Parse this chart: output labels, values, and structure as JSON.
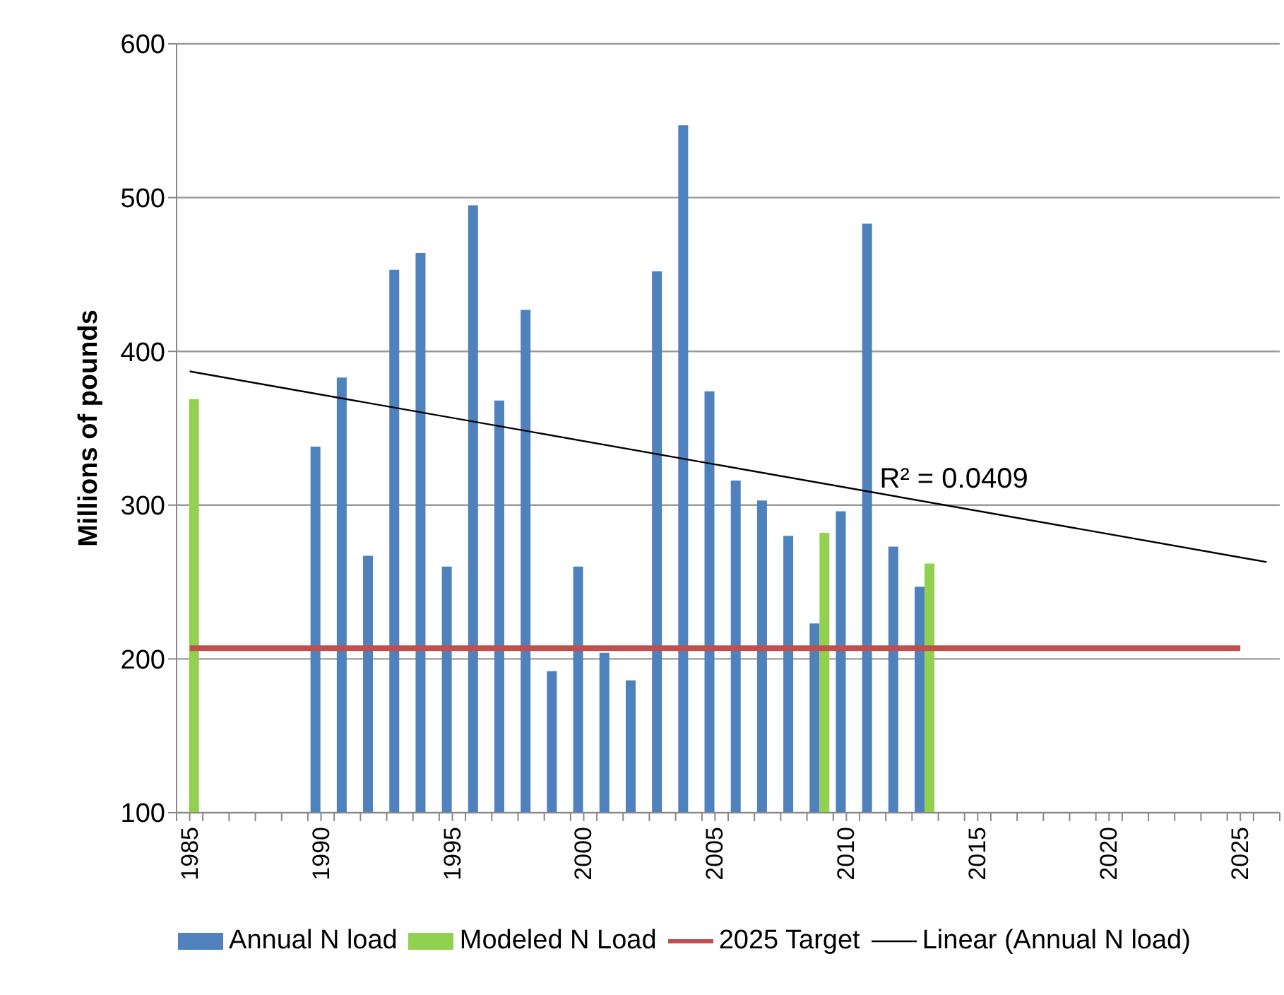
{
  "chart_data": {
    "type": "bar",
    "ylabel": "Millions of pounds",
    "xlim": [
      1984.5,
      2026.5
    ],
    "xticks": [
      1985,
      1990,
      1995,
      2000,
      2005,
      2010,
      2015,
      2020,
      2025,
      {
        "value": 1984.5,
        "label": null
      },
      {
        "value": 1985.5,
        "label": null
      },
      {
        "value": 1986.5,
        "label": null
      },
      {
        "value": 1987.5,
        "label": null
      },
      {
        "value": 1988.5,
        "label": null
      },
      {
        "value": 1989.5,
        "label": null
      },
      {
        "value": 1990.5,
        "label": null
      },
      {
        "value": 1991.5,
        "label": null
      },
      {
        "value": 1992.5,
        "label": null
      },
      {
        "value": 1993.5,
        "label": null
      },
      {
        "value": 1994.5,
        "label": null
      },
      {
        "value": 1995.5,
        "label": null
      },
      {
        "value": 1996.5,
        "label": null
      },
      {
        "value": 1997.5,
        "label": null
      },
      {
        "value": 1998.5,
        "label": null
      },
      {
        "value": 1999.5,
        "label": null
      },
      {
        "value": 2000.5,
        "label": null
      },
      {
        "value": 2001.5,
        "label": null
      },
      {
        "value": 2002.5,
        "label": null
      },
      {
        "value": 2003.5,
        "label": null
      },
      {
        "value": 2004.5,
        "label": null
      },
      {
        "value": 2005.5,
        "label": null
      },
      {
        "value": 2006.5,
        "label": null
      },
      {
        "value": 2007.5,
        "label": null
      },
      {
        "value": 2008.5,
        "label": null
      },
      {
        "value": 2009.5,
        "label": null
      },
      {
        "value": 2010.5,
        "label": null
      },
      {
        "value": 2011.5,
        "label": null
      },
      {
        "value": 2012.5,
        "label": null
      },
      {
        "value": 2013.5,
        "label": null
      },
      {
        "value": 2014.5,
        "label": null
      },
      {
        "value": 2015.5,
        "label": null
      },
      {
        "value": 2016.5,
        "label": null
      },
      {
        "value": 2017.5,
        "label": null
      },
      {
        "value": 2018.5,
        "label": null
      },
      {
        "value": 2019.5,
        "label": null
      },
      {
        "value": 2020.5,
        "label": null
      },
      {
        "value": 2021.5,
        "label": null
      },
      {
        "value": 2022.5,
        "label": null
      },
      {
        "value": 2023.5,
        "label": null
      },
      {
        "value": 2024.5,
        "label": null
      },
      {
        "value": 2025.5,
        "label": null
      },
      {
        "value": 2026.5,
        "label": null
      }
    ],
    "ylim": [
      100,
      600
    ],
    "yticks": [
      100,
      200,
      300,
      400,
      500,
      600
    ],
    "x": [
      1985,
      1990,
      1991,
      1992,
      1993,
      1994,
      1995,
      1996,
      1997,
      1998,
      1999,
      2000,
      2001,
      2002,
      2003,
      2004,
      2005,
      2006,
      2007,
      2008,
      2009,
      2010,
      2011,
      2012,
      2013
    ],
    "series": [
      {
        "name": "Annual N load",
        "color": "#4f81bd",
        "values": [
          null,
          338,
          383,
          267,
          453,
          464,
          260,
          495,
          368,
          427,
          192,
          260,
          204,
          186,
          452,
          547,
          374,
          316,
          303,
          280,
          223,
          296,
          483,
          273,
          247
        ]
      },
      {
        "name": "Modeled N Load",
        "color": "#92d050",
        "values": [
          369,
          null,
          null,
          null,
          null,
          null,
          null,
          null,
          null,
          null,
          null,
          null,
          null,
          null,
          null,
          null,
          null,
          null,
          null,
          null,
          282,
          null,
          null,
          null,
          262
        ]
      },
      {
        "name": "2025 Target",
        "type": "line",
        "color": "#c0504d",
        "x": [
          1985,
          2025
        ],
        "values": [
          207,
          207
        ]
      },
      {
        "name": "Linear (Annual N load)",
        "type": "line",
        "color": "#000000",
        "x": [
          1985,
          2026
        ],
        "values": [
          387,
          263
        ]
      }
    ],
    "annotations": [
      {
        "text": "R² = 0.0409",
        "x": 2011,
        "y": 318
      }
    ],
    "grid": "y",
    "legend": "bottom",
    "marker": "none"
  }
}
